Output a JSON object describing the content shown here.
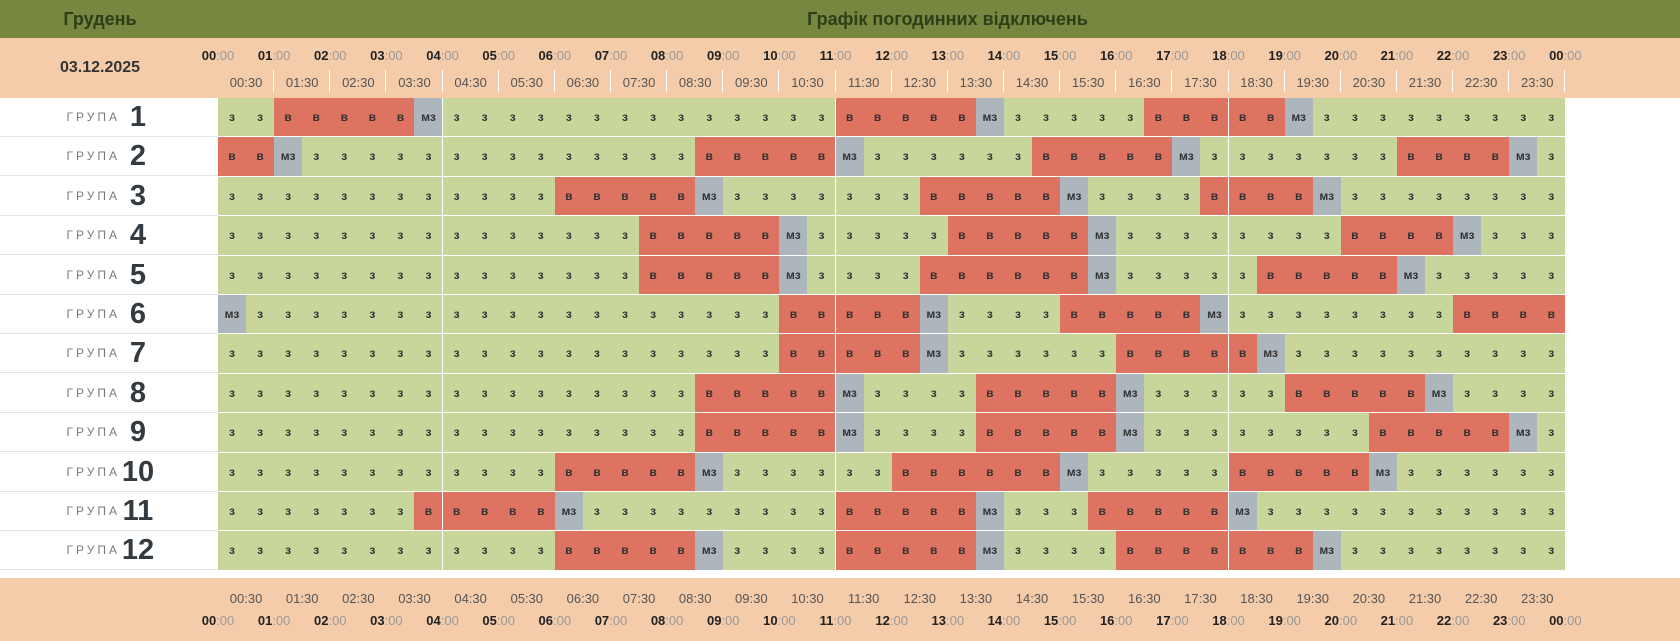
{
  "header": {
    "month": "Грудень",
    "title": "Графік погодинних відключень"
  },
  "date": "03.12.2025",
  "group_word": "ГРУПА",
  "hours": [
    "00",
    "01",
    "02",
    "03",
    "04",
    "05",
    "06",
    "07",
    "08",
    "09",
    "10",
    "11",
    "12",
    "13",
    "14",
    "15",
    "16",
    "17",
    "18",
    "19",
    "20",
    "21",
    "22",
    "23",
    "00"
  ],
  "hour_suffix": ":00",
  "half_hours": [
    "00:30",
    "01:30",
    "02:30",
    "03:30",
    "04:30",
    "05:30",
    "06:30",
    "07:30",
    "08:30",
    "09:30",
    "10:30",
    "11:30",
    "12:30",
    "13:30",
    "14:30",
    "15:30",
    "16:30",
    "17:30",
    "18:30",
    "19:30",
    "20:30",
    "21:30",
    "22:30",
    "23:30"
  ],
  "legend": {
    "z": {
      "label": "з",
      "color": "#c8d69c"
    },
    "v": {
      "label": "в",
      "color": "#de7362"
    },
    "m": {
      "label": "мз",
      "color": "#adb6bd"
    }
  },
  "groups": [
    {
      "number": "1",
      "slots": "zzvvvvvmzzzzzzzzzzzzzzvvvvvmzzzzzvvvvvmzzzzzzzzz"
    },
    {
      "number": "2",
      "slots": "vvmzzzzzzzzzzzzzzvvvvvmzzzzzzvvvvvmzzzzzzzvvvvmz"
    },
    {
      "number": "3",
      "slots": "zzzzzzzzzzzzvvvvvmzzzzzzzvvvvvmzzzzvvvvmzzzzzzzz"
    },
    {
      "number": "4",
      "slots": "zzzzzzzzzzzzzzzvvvvvmzzzzzvvvvvmzzzzzzzzvvvvmzzz"
    },
    {
      "number": "5",
      "slots": "zzzzzzzzzzzzzzzvvvvvmzzzzvvvvvvmzzzzzvvvvvmzzzzz"
    },
    {
      "number": "6",
      "slots": "mzzzzzzzzzzzzzzzzzzzvvvvvmzzzzvvvvvmzzzzzzzzvvvv"
    },
    {
      "number": "7",
      "slots": "zzzzzzzzzzzzzzzzzzzzvvvvvmzzzzzzvvvvvmzzzzzzzzzz"
    },
    {
      "number": "8",
      "slots": "zzzzzzzzzzzzzzzzzvvvvvmzzzzvvvvvmzzzzzvvvvvmzzzz"
    },
    {
      "number": "9",
      "slots": "zzzzzzzzzzzzzzzzzvvvvvmzzzzvvvvvmzzzzzzzzvvvvvmz"
    },
    {
      "number": "10",
      "slots": "zzzzzzzzzzzzvvvvvmzzzzzzvvvvvvmzzzzzvvvvvmzzzzzz"
    },
    {
      "number": "11",
      "slots": "zzzzzzzvvvvvmzzzzzzzzzvvvvvmzzzvvvvvmzzzzzzzzzzz"
    },
    {
      "number": "12",
      "slots": "zzzzzzzzzzzzvvvvvmzzzzvvvvvmzzzzvvvvvvvmzzzzzzzz"
    }
  ]
}
